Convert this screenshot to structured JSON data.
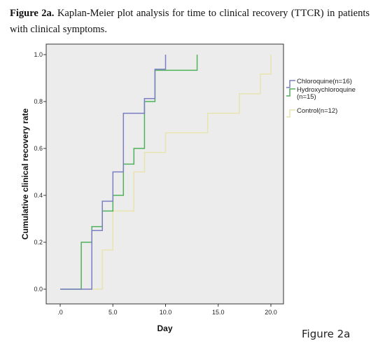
{
  "caption": {
    "bold": "Figure 2a.",
    "text": " Kaplan-Meier plot analysis for time to clinical recovery (TTCR) in patients with clinical symptoms."
  },
  "figure_label": "Figure 2a",
  "chart_data": {
    "type": "line",
    "step": true,
    "xlabel": "Day",
    "ylabel": "Cumulative clinical recovery rate",
    "xlim": [
      0,
      20
    ],
    "ylim": [
      0,
      1.0
    ],
    "x_ticks": [
      ".0",
      "5.0",
      "10.0",
      "15.0",
      "20.0"
    ],
    "x_tick_values": [
      0,
      5,
      10,
      15,
      20
    ],
    "y_ticks": [
      "0.0",
      "0.2",
      "0.4",
      "0.6",
      "0.8",
      "1.0"
    ],
    "y_tick_values": [
      0,
      0.2,
      0.4,
      0.6,
      0.8,
      1.0
    ],
    "grid": false,
    "plot_background": "#ececec",
    "legend_position": "right",
    "series": [
      {
        "name": "Chloroquine(n=16)",
        "color": "#7a7fc4",
        "points": [
          [
            0,
            0
          ],
          [
            3,
            0
          ],
          [
            3,
            0.25
          ],
          [
            4,
            0.25
          ],
          [
            4,
            0.375
          ],
          [
            5,
            0.375
          ],
          [
            5,
            0.5
          ],
          [
            6,
            0.5
          ],
          [
            6,
            0.75
          ],
          [
            8,
            0.75
          ],
          [
            8,
            0.8125
          ],
          [
            9,
            0.8125
          ],
          [
            9,
            0.9375
          ],
          [
            10,
            0.9375
          ],
          [
            10,
            1.0
          ]
        ]
      },
      {
        "name": "Hydroxychloroquine\n(n=15)",
        "color": "#4fb25a",
        "points": [
          [
            0,
            0
          ],
          [
            2,
            0
          ],
          [
            2,
            0.2
          ],
          [
            3,
            0.2
          ],
          [
            3,
            0.267
          ],
          [
            4,
            0.267
          ],
          [
            4,
            0.333
          ],
          [
            5,
            0.333
          ],
          [
            5,
            0.4
          ],
          [
            6,
            0.4
          ],
          [
            6,
            0.533
          ],
          [
            7,
            0.533
          ],
          [
            7,
            0.6
          ],
          [
            8,
            0.6
          ],
          [
            8,
            0.8
          ],
          [
            9,
            0.8
          ],
          [
            9,
            0.933
          ],
          [
            13,
            0.933
          ],
          [
            13,
            1.0
          ]
        ]
      },
      {
        "name": "Control(n=12)",
        "color": "#e8e4b0",
        "points": [
          [
            0,
            0
          ],
          [
            4,
            0
          ],
          [
            4,
            0.167
          ],
          [
            5,
            0.167
          ],
          [
            5,
            0.333
          ],
          [
            7,
            0.333
          ],
          [
            7,
            0.5
          ],
          [
            8,
            0.5
          ],
          [
            8,
            0.583
          ],
          [
            10,
            0.583
          ],
          [
            10,
            0.667
          ],
          [
            14,
            0.667
          ],
          [
            14,
            0.75
          ],
          [
            17,
            0.75
          ],
          [
            17,
            0.833
          ],
          [
            19,
            0.833
          ],
          [
            19,
            0.917
          ],
          [
            20,
            0.917
          ],
          [
            20,
            1.0
          ]
        ]
      }
    ]
  }
}
